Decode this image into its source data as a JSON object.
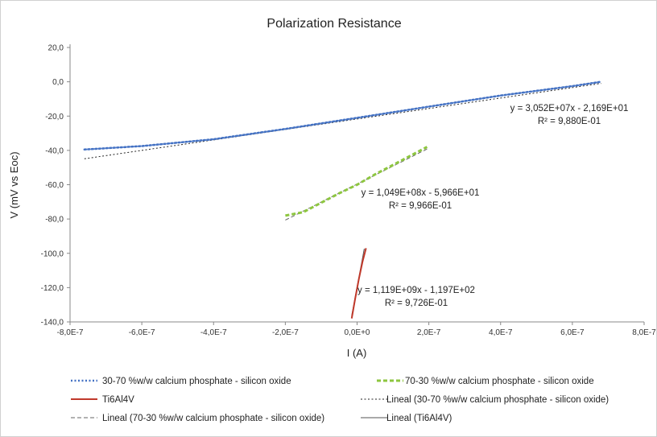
{
  "chart_data": {
    "type": "line",
    "title": "Polarization Resistance",
    "xlabel": "I (A)",
    "ylabel": "V (mV vs Eoc)",
    "xlim": [
      -8e-07,
      8e-07
    ],
    "ylim": [
      -140,
      20
    ],
    "x_ticks": [
      -8e-07,
      -6e-07,
      -4e-07,
      -2e-07,
      0,
      2e-07,
      4e-07,
      6e-07,
      8e-07
    ],
    "x_tick_labels": [
      "-8,0E-7",
      "-6,0E-7",
      "-4,0E-7",
      "-2,0E-7",
      "0,0E+0",
      "2,0E-7",
      "4,0E-7",
      "6,0E-7",
      "8,0E-7"
    ],
    "y_ticks": [
      20,
      0,
      -20,
      -40,
      -60,
      -80,
      -100,
      -120,
      -140
    ],
    "y_tick_labels": [
      "20,0",
      "0,0",
      "-20,0",
      "-40,0",
      "-60,0",
      "-80,0",
      "-100,0",
      "-120,0",
      "-140,0"
    ],
    "grid": false,
    "legend_position": "bottom",
    "series": [
      {
        "name": "30-70 %w/w calcium phosphate - silicon oxide",
        "color": "#4472c4",
        "style": "dotted",
        "x": [
          -7.6e-07,
          -6e-07,
          -4e-07,
          -2e-07,
          0,
          2e-07,
          4e-07,
          6e-07,
          6.8e-07
        ],
        "y": [
          -39.5,
          -37.5,
          -33.5,
          -27.5,
          -21.0,
          -14.5,
          -8.0,
          -2.5,
          0.0
        ]
      },
      {
        "name": "70-30 %w/w calcium phosphate - silicon oxide",
        "color": "#8dc63f",
        "style": "dashed",
        "x": [
          -2e-07,
          -1.5e-07,
          -1e-07,
          -5e-08,
          0,
          5e-08,
          1e-07,
          1.5e-07,
          1.95e-07
        ],
        "y": [
          -78.0,
          -76.0,
          -70.5,
          -65.0,
          -60.0,
          -54.0,
          -48.5,
          -43.0,
          -38.0
        ]
      },
      {
        "name": "Ti6Al4V",
        "color": "#c0392b",
        "style": "solid",
        "x": [
          -1.5e-08,
          -5e-09,
          5e-09,
          1.5e-08,
          2.5e-08
        ],
        "y": [
          -138.0,
          -126.0,
          -115.0,
          -105.0,
          -97.0
        ]
      }
    ],
    "trendlines": [
      {
        "name": "Lineal (30-70 %w/w calcium phosphate - silicon oxide)",
        "color": "#222222",
        "style": "dotted",
        "slope": 30520000.0,
        "intercept": -21.69,
        "x_range": [
          -7.6e-07,
          6.8e-07
        ]
      },
      {
        "name": "Lineal (70-30 %w/w calcium phosphate - silicon oxide)",
        "color": "#666666",
        "style": "dashed",
        "slope": 104900000.0,
        "intercept": -59.66,
        "x_range": [
          -2e-07,
          1.95e-07
        ]
      },
      {
        "name": "Lineal (Ti6Al4V)",
        "color": "#555555",
        "style": "solid",
        "slope": 1119000000.0,
        "intercept": -119.7,
        "x_range": [
          -1.5e-08,
          2e-08
        ]
      }
    ],
    "annotations": [
      {
        "line1": "y = 3,052E+07x - 2,169E+01",
        "line2": "R² = 9,880E-01"
      },
      {
        "line1": "y = 1,049E+08x - 5,966E+01",
        "line2": "R² = 9,966E-01"
      },
      {
        "line1": "y = 1,119E+09x - 1,197E+02",
        "line2": "R² = 9,726E-01"
      }
    ]
  }
}
